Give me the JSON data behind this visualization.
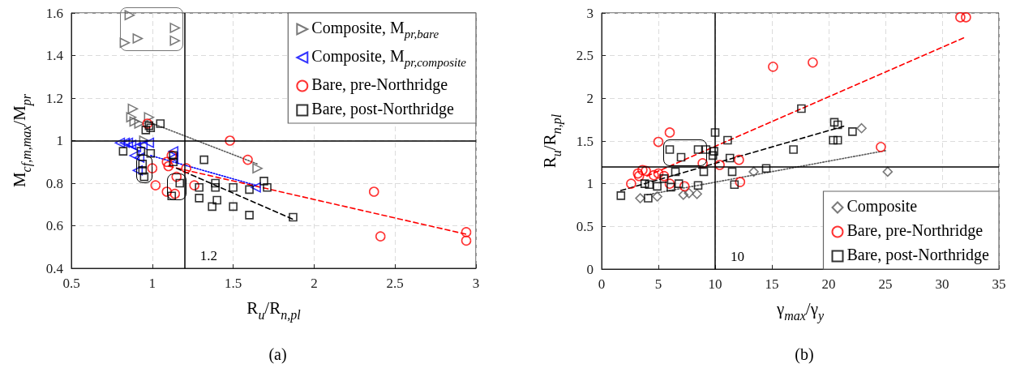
{
  "chart_data": [
    {
      "type": "scatter",
      "title": "(a)",
      "xlabel": "R$_{u}$/R$_{n,pl}$",
      "ylabel": "M$_{cf,m,max}$/M$_{pr}$",
      "xlim": [
        0.5,
        3
      ],
      "xticks": [
        0.5,
        1,
        1.5,
        2,
        2.5,
        3
      ],
      "ylim": [
        0.4,
        1.6
      ],
      "yticks": [
        0.4,
        0.6,
        0.8,
        1,
        1.2,
        1.4,
        1.6
      ],
      "grid": true,
      "legend": "top right",
      "ref_lines": [
        {
          "axis": "x",
          "value": 1.2,
          "label": "1.2"
        },
        {
          "axis": "y",
          "value": 1
        }
      ],
      "series": [
        {
          "name": "Composite, M$_{pr,bare}$",
          "color": "#595959",
          "marker": "triangle-right",
          "x": [
            0.86,
            0.83,
            0.91,
            1.14,
            1.14,
            0.88,
            0.87,
            0.89,
            0.92,
            0.98,
            0.95,
            1.65
          ],
          "values": [
            1.59,
            1.46,
            1.48,
            1.53,
            1.47,
            1.15,
            1.11,
            1.09,
            1.08,
            1.11,
            1.0,
            0.87
          ]
        },
        {
          "name": "Composite, M$_{pr,composite}$",
          "color": "#0000ff",
          "marker": "triangle-left",
          "x": [
            0.8,
            0.83,
            0.85,
            0.87,
            0.9,
            0.94,
            0.98,
            0.89,
            0.92,
            1.13,
            1.13,
            0.91,
            1.64
          ],
          "values": [
            0.99,
            0.99,
            0.99,
            0.98,
            0.97,
            0.98,
            0.99,
            0.93,
            0.92,
            0.95,
            0.92,
            0.86,
            0.78
          ]
        },
        {
          "name": "Bare, pre-Northridge",
          "color": "#ff0000",
          "marker": "circle",
          "x": [
            0.97,
            1.0,
            1.09,
            1.1,
            1.12,
            1.21,
            1.15,
            1.02,
            1.09,
            1.14,
            1.26,
            1.48,
            1.59,
            2.37,
            2.41,
            2.94,
            2.94
          ],
          "values": [
            1.08,
            0.87,
            0.9,
            0.88,
            0.93,
            0.87,
            0.83,
            0.79,
            0.76,
            0.75,
            0.79,
            1.0,
            0.91,
            0.76,
            0.55,
            0.57,
            0.53
          ]
        },
        {
          "name": "Bare, post-Northridge",
          "color": "#000000",
          "marker": "square",
          "x": [
            1.05,
            0.98,
            0.99,
            0.96,
            0.82,
            0.93,
            0.99,
            1.13,
            1.13,
            0.94,
            0.94,
            0.95,
            1.32,
            1.17,
            1.12,
            1.29,
            1.29,
            1.39,
            1.39,
            1.4,
            1.37,
            1.5,
            1.5,
            1.6,
            1.6,
            1.69,
            1.71,
            1.87
          ],
          "values": [
            1.08,
            1.07,
            1.06,
            1.05,
            0.95,
            0.95,
            0.94,
            0.93,
            0.9,
            0.89,
            0.86,
            0.83,
            0.91,
            0.8,
            0.74,
            0.78,
            0.73,
            0.8,
            0.78,
            0.72,
            0.69,
            0.78,
            0.69,
            0.77,
            0.65,
            0.81,
            0.78,
            0.64
          ]
        },
        {
          "type": "line",
          "color": "#595959",
          "line_style": "dotted",
          "marker": "none",
          "x": [
            0.97,
            1.65
          ],
          "values": [
            1.09,
            0.89
          ]
        },
        {
          "type": "line",
          "color": "#0000ff",
          "line_style": "dotted",
          "marker": "none",
          "x": [
            0.99,
            1.64
          ],
          "values": [
            0.93,
            0.79
          ]
        },
        {
          "type": "line",
          "color": "#ff0000",
          "line_style": "dashed",
          "marker": "none",
          "x": [
            1.1,
            2.94
          ],
          "values": [
            0.88,
            0.56
          ]
        },
        {
          "type": "line",
          "color": "#000000",
          "line_style": "dashed",
          "marker": "none",
          "x": [
            1.15,
            1.87
          ],
          "values": [
            0.87,
            0.63
          ]
        }
      ]
    },
    {
      "type": "scatter",
      "title": "(b)",
      "xlabel": "γ$_{max}$/γ$_{y}$",
      "ylabel": "R$_{u}$/R$_{n,pl}$",
      "xlim": [
        0,
        35
      ],
      "xticks": [
        0,
        5,
        10,
        15,
        20,
        25,
        30,
        35
      ],
      "ylim": [
        0,
        3
      ],
      "yticks": [
        0,
        0.5,
        1,
        1.5,
        2,
        2.5,
        3
      ],
      "grid": true,
      "legend": "bottom right",
      "ref_lines": [
        {
          "axis": "x",
          "value": 10,
          "label": "10"
        },
        {
          "axis": "y",
          "value": 1.2
        }
      ],
      "series": [
        {
          "name": "Composite",
          "color": "#595959",
          "marker": "diamond",
          "x": [
            3.4,
            4.9,
            7.2,
            7.7,
            8.4,
            13.4,
            22.9,
            25.2
          ],
          "values": [
            0.83,
            0.85,
            0.87,
            0.89,
            0.88,
            1.14,
            1.65,
            1.14
          ]
        },
        {
          "name": "Bare, pre-Northridge",
          "color": "#ff0000",
          "marker": "circle",
          "x": [
            15.1,
            6.0,
            5.0,
            8.9,
            10.4,
            12.1,
            12.2,
            3.6,
            3.9,
            3.2,
            3.3,
            4.6,
            5.0,
            5.5,
            2.6,
            6.0,
            7.3,
            18.6,
            31.6,
            32.1,
            24.6
          ],
          "values": [
            2.37,
            1.6,
            1.49,
            1.24,
            1.22,
            1.28,
            1.02,
            1.16,
            1.15,
            1.12,
            1.09,
            1.1,
            1.12,
            1.09,
            1.0,
            1.0,
            0.97,
            2.42,
            2.95,
            2.95,
            1.43
          ]
        },
        {
          "name": "Bare, post-Northridge",
          "color": "#000000",
          "marker": "square",
          "x": [
            10.0,
            11.1,
            6.0,
            8.5,
            9.2,
            9.9,
            9.8,
            7.0,
            11.3,
            6.5,
            9.0,
            11.5,
            5.5,
            3.8,
            4.2,
            4.9,
            6.8,
            6.1,
            8.5,
            11.7,
            14.5,
            1.7,
            4.1,
            16.9,
            17.6,
            20.5,
            20.8,
            22.1,
            20.4,
            20.8
          ],
          "values": [
            1.6,
            1.51,
            1.4,
            1.4,
            1.4,
            1.38,
            1.33,
            1.31,
            1.3,
            1.14,
            1.14,
            1.14,
            1.06,
            1.0,
            0.99,
            0.97,
            1.0,
            0.96,
            0.98,
            0.99,
            1.18,
            0.86,
            0.83,
            1.4,
            1.88,
            1.72,
            1.69,
            1.61,
            1.51,
            1.51
          ]
        },
        {
          "type": "line",
          "color": "#ff0000",
          "line_style": "dashed",
          "marker": "none",
          "x": [
            4,
            32.1
          ],
          "values": [
            1.09,
            2.72
          ]
        },
        {
          "type": "line",
          "color": "#000000",
          "line_style": "dashed",
          "marker": "none",
          "x": [
            1.7,
            21.5
          ],
          "values": [
            0.92,
            1.68
          ]
        },
        {
          "type": "line",
          "color": "#595959",
          "line_style": "dotted",
          "marker": "none",
          "x": [
            4.0,
            25.1
          ],
          "values": [
            0.87,
            1.39
          ]
        }
      ]
    }
  ]
}
